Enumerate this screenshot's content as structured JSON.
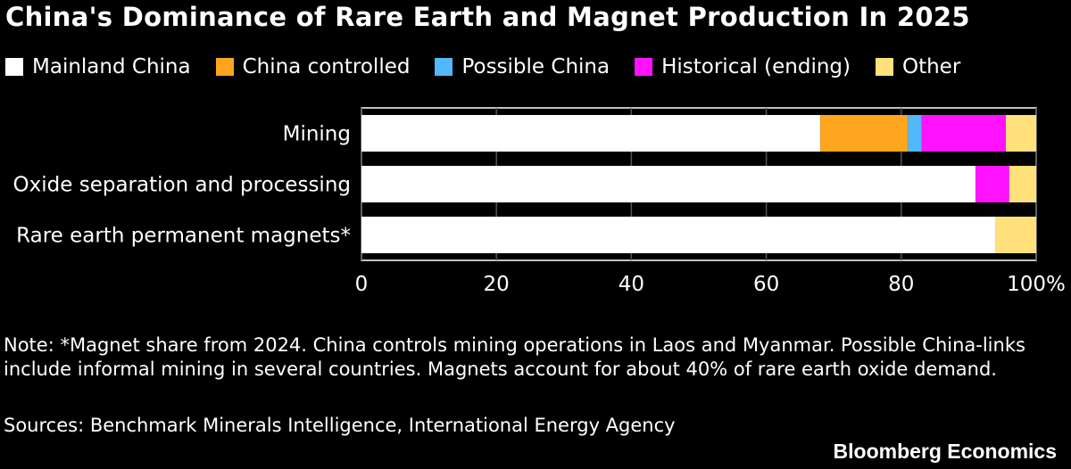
{
  "title": "China's Dominance of Rare Earth and Magnet Production In 2025",
  "chart_data": {
    "type": "bar",
    "orientation": "horizontal",
    "stacked": true,
    "categories": [
      "Mining",
      "Oxide separation and processing",
      "Rare earth permanent magnets*"
    ],
    "series": [
      {
        "name": "Mainland China",
        "color": "#ffffff",
        "values": [
          68,
          91,
          94
        ]
      },
      {
        "name": "China controlled",
        "color": "#ffa51e",
        "values": [
          13,
          0,
          0
        ]
      },
      {
        "name": "Possible China",
        "color": "#52b8fa",
        "values": [
          2,
          0,
          0
        ]
      },
      {
        "name": "Historical (ending)",
        "color": "#ff12ff",
        "values": [
          12.5,
          5,
          0
        ]
      },
      {
        "name": "Other",
        "color": "#ffe07a",
        "values": [
          4.5,
          4,
          6
        ]
      }
    ],
    "xlim": [
      0,
      100
    ],
    "xticks": [
      "0",
      "20",
      "40",
      "60",
      "80",
      "100%"
    ],
    "xtick_values": [
      0,
      20,
      40,
      60,
      80,
      100
    ],
    "grid": true,
    "legend": "top-left"
  },
  "note": "Note: *Magnet share from 2024. China controls mining operations in Laos and Myanmar. Possible China-links include informal mining in several countries. Magnets account for about 40% of rare earth oxide demand.",
  "sources": "Sources: Benchmark Minerals Intelligence, International Energy Agency",
  "brand": "Bloomberg Economics"
}
